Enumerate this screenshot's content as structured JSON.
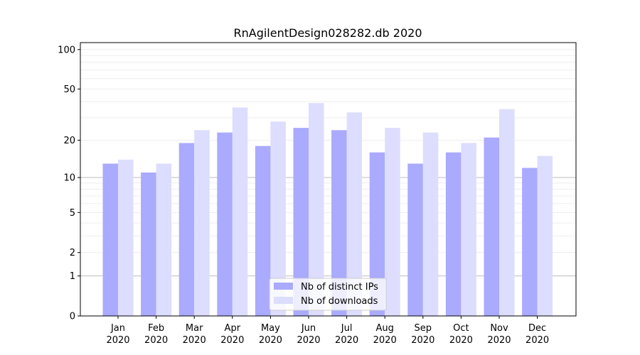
{
  "chart_data": {
    "type": "bar",
    "title": "RnAgilentDesign028282.db 2020",
    "xlabel": "",
    "ylabel": "",
    "yscale": "log(1+y)",
    "ylim": [
      0,
      110
    ],
    "yticks": [
      0,
      1,
      2,
      5,
      10,
      20,
      50,
      100
    ],
    "grid": "horizontal",
    "legend_position": "bottom-center",
    "categories": [
      "Jan\n2020",
      "Feb\n2020",
      "Mar\n2020",
      "Apr\n2020",
      "May\n2020",
      "Jun\n2020",
      "Jul\n2020",
      "Aug\n2020",
      "Sep\n2020",
      "Oct\n2020",
      "Nov\n2020",
      "Dec\n2020"
    ],
    "category_labels": [
      [
        "Jan",
        "2020"
      ],
      [
        "Feb",
        "2020"
      ],
      [
        "Mar",
        "2020"
      ],
      [
        "Apr",
        "2020"
      ],
      [
        "May",
        "2020"
      ],
      [
        "Jun",
        "2020"
      ],
      [
        "Jul",
        "2020"
      ],
      [
        "Aug",
        "2020"
      ],
      [
        "Sep",
        "2020"
      ],
      [
        "Oct",
        "2020"
      ],
      [
        "Nov",
        "2020"
      ],
      [
        "Dec",
        "2020"
      ]
    ],
    "series": [
      {
        "name": "Nb of distinct IPs",
        "color": "#aaaaff",
        "values": [
          13,
          11,
          19,
          23,
          18,
          25,
          24,
          16,
          13,
          16,
          21,
          12
        ]
      },
      {
        "name": "Nb of downloads",
        "color": "#ddddff",
        "values": [
          14,
          13,
          24,
          36,
          28,
          39,
          33,
          25,
          23,
          19,
          35,
          15
        ]
      }
    ]
  }
}
